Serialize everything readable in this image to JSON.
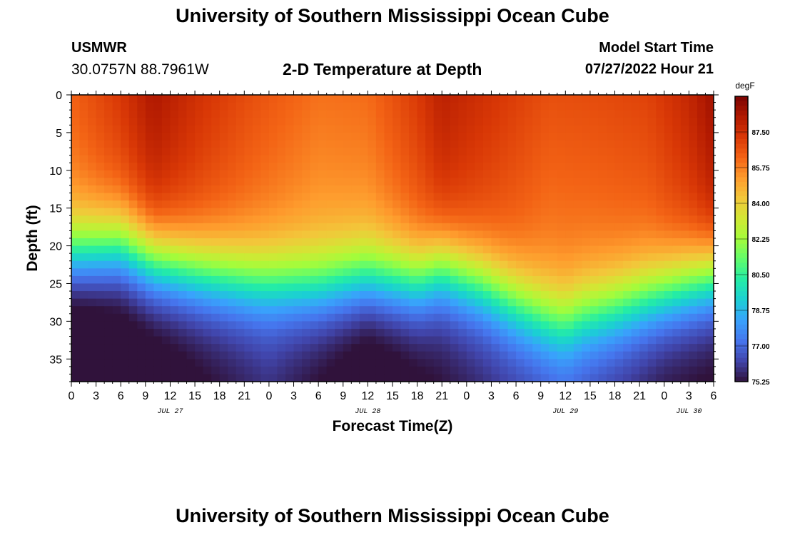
{
  "header": {
    "title": "University of Southern Mississippi Ocean Cube",
    "station": "USMWR",
    "coordinates": "30.0757N  88.7961W",
    "subtitle": "2-D Temperature at Depth",
    "model_start_label": "Model Start Time",
    "model_start_value": "07/27/2022 Hour 21"
  },
  "footer": {
    "title": "University of Southern Mississippi Ocean Cube"
  },
  "chart_data": {
    "type": "heatmap",
    "title": "2-D Temperature at Depth",
    "xlabel": "Forecast Time(Z)",
    "ylabel": "Depth (ft)",
    "x_start_hour_of_jul27": 0,
    "x_end_hour_of_jul27": 78,
    "xlim_hours": [
      0,
      78
    ],
    "x_tick_labels": [
      "0",
      "3",
      "6",
      "9",
      "12",
      "15",
      "18",
      "21",
      "0",
      "3",
      "6",
      "9",
      "12",
      "15",
      "18",
      "21",
      "0",
      "3",
      "6",
      "9",
      "12",
      "15",
      "18",
      "21",
      "0",
      "3",
      "6"
    ],
    "date_labels": [
      {
        "label": "JUL 27",
        "hour": 12
      },
      {
        "label": "JUL 28",
        "hour": 36
      },
      {
        "label": "JUL 29",
        "hour": 60
      },
      {
        "label": "JUL 30",
        "hour": 75
      }
    ],
    "ylim_ft": [
      0,
      38
    ],
    "y_ticks": [
      0,
      5,
      10,
      15,
      20,
      25,
      30,
      35
    ],
    "colorbar": {
      "unit": "degF",
      "min": 75.25,
      "max": 89.25,
      "ticks": [
        "87.50",
        "85.75",
        "84.00",
        "82.25",
        "80.50",
        "78.75",
        "77.00",
        "75.25"
      ],
      "tick_values": [
        87.5,
        85.75,
        84.0,
        82.25,
        80.5,
        78.75,
        77.0,
        75.25
      ],
      "colors": [
        "#30123b",
        "#4145ab",
        "#4675ed",
        "#39a2fc",
        "#1bcfd4",
        "#24eca6",
        "#61fc6c",
        "#a4fc3b",
        "#d1e834",
        "#f3c63a",
        "#fe9b2d",
        "#f36315",
        "#d93806",
        "#b11901",
        "#7a0402"
      ]
    },
    "series": [
      {
        "name": "surface_temp_degF",
        "hours": [
          0,
          6,
          10,
          16,
          22,
          30,
          36,
          42,
          45,
          52,
          58,
          64,
          70,
          75,
          78
        ],
        "values": [
          86.3,
          87.3,
          88.3,
          87.4,
          86.7,
          86.0,
          86.1,
          87.2,
          88.0,
          87.3,
          86.7,
          86.8,
          87.0,
          87.8,
          88.6
        ]
      },
      {
        "name": "thermocline_mid_depth_ft",
        "hours": [
          0,
          6,
          10,
          16,
          22,
          30,
          36,
          42,
          45,
          50,
          54,
          58,
          60,
          62,
          66,
          72,
          78
        ],
        "values": [
          21,
          20,
          22,
          23.5,
          24.5,
          25,
          24,
          24.5,
          23,
          25,
          27.5,
          29.5,
          30,
          29,
          28,
          26,
          24
        ]
      },
      {
        "name": "bottom_temp_degF",
        "hours": [
          0,
          12,
          24,
          36,
          48,
          60,
          72,
          78
        ],
        "values": [
          75.3,
          76.2,
          77.3,
          75.9,
          77.0,
          78.2,
          76.8,
          76.5
        ]
      }
    ]
  }
}
